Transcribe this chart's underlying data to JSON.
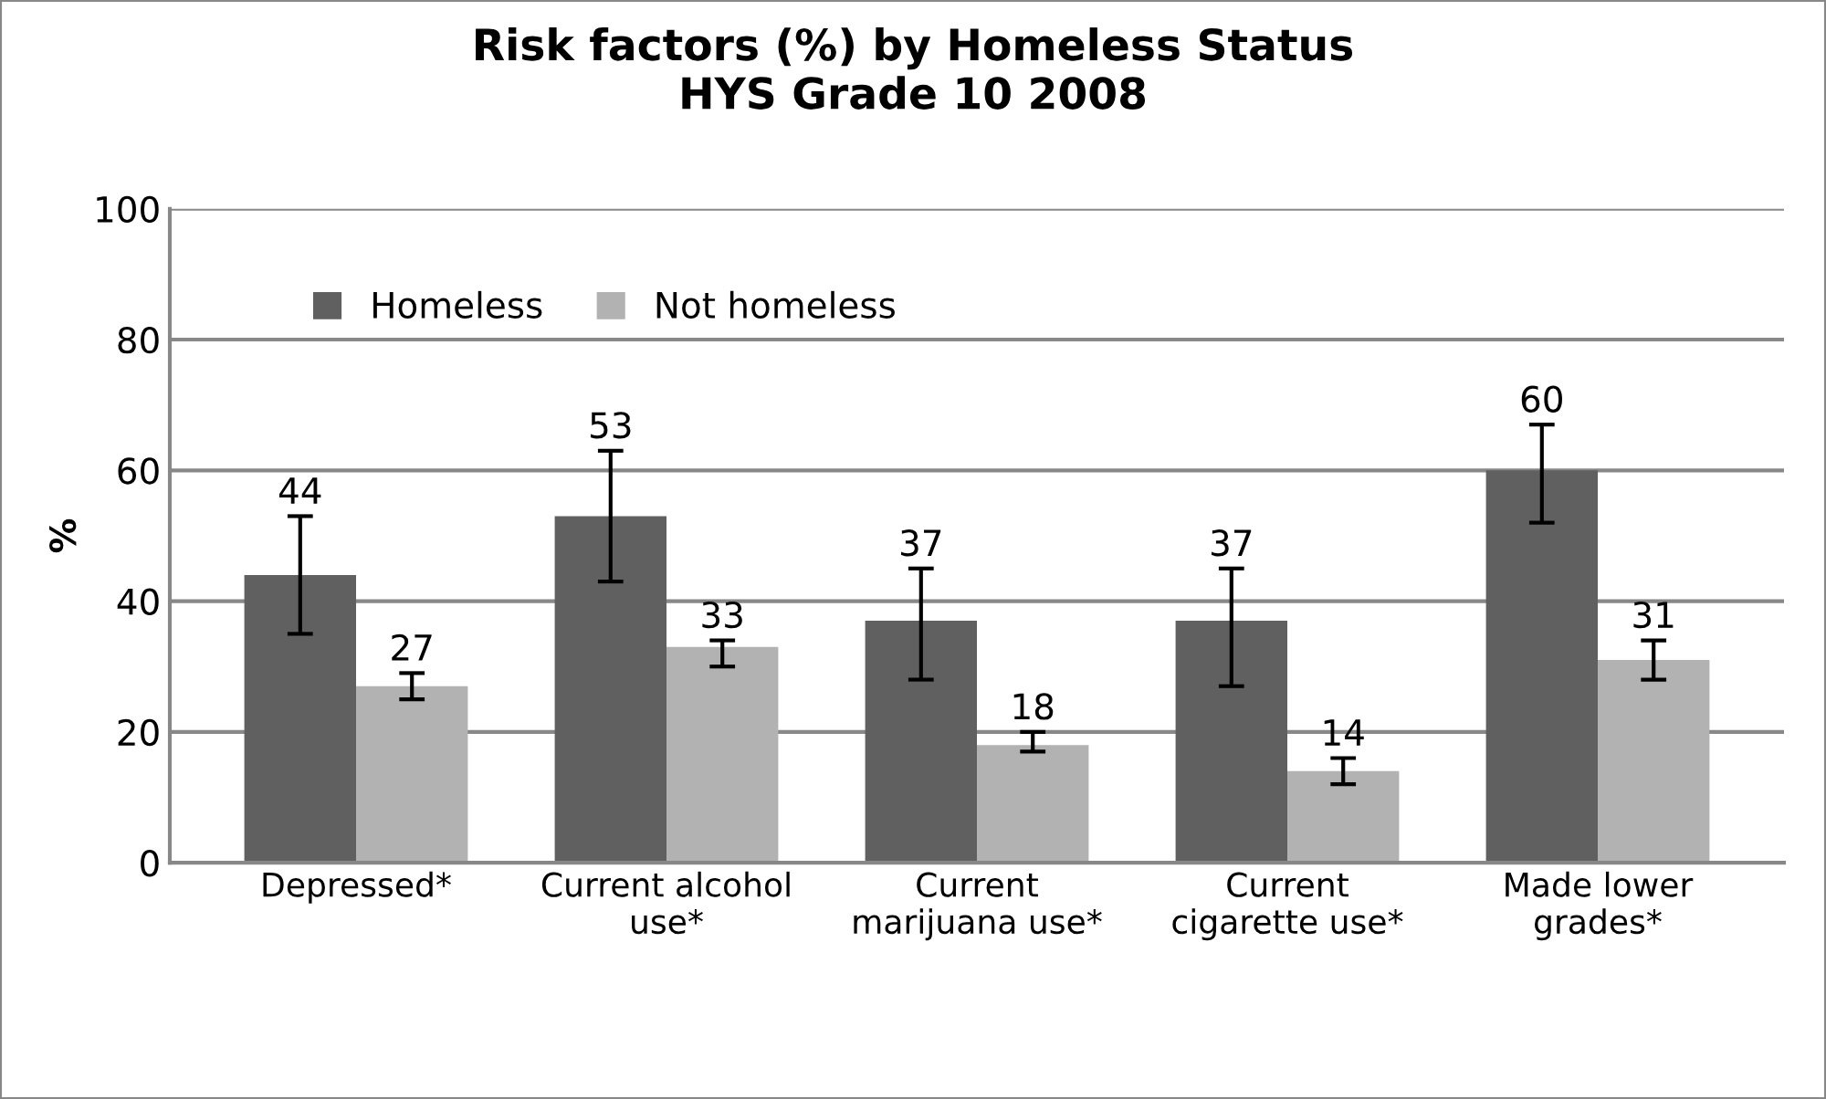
{
  "chart_data": {
    "type": "bar",
    "title": "Risk factors (%) by Homeless Status\nHYS Grade 10 2008",
    "ylabel": "%",
    "categories": [
      "Depressed*",
      "Current alcohol\nuse*",
      "Current\nmarijuana use*",
      "Current\ncigarette use*",
      "Made lower\ngrades*"
    ],
    "series": [
      {
        "name": "Homeless",
        "color": "#606060",
        "values": [
          44,
          53,
          37,
          37,
          60
        ],
        "errors": [
          [
            35,
            53
          ],
          [
            43,
            63
          ],
          [
            28,
            45
          ],
          [
            27,
            45
          ],
          [
            52,
            67
          ]
        ]
      },
      {
        "name": "Not homeless",
        "color": "#b2b2b2",
        "values": [
          27,
          33,
          18,
          14,
          31
        ],
        "errors": [
          [
            25,
            29
          ],
          [
            30,
            34
          ],
          [
            17,
            20
          ],
          [
            12,
            16
          ],
          [
            28,
            34
          ]
        ]
      }
    ],
    "ylim": [
      0,
      100
    ],
    "yticks": [
      0,
      20,
      40,
      60,
      80,
      100
    ],
    "grid": "y",
    "legend": "top left",
    "data_labels": true
  }
}
